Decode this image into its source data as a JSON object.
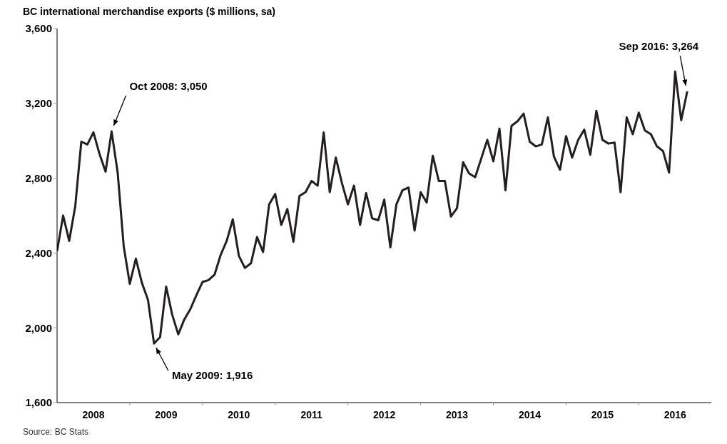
{
  "chart_data": {
    "type": "line",
    "title": "BC international merchandise exports ($ millions, sa)",
    "x": [
      "2008-01",
      "2008-02",
      "2008-03",
      "2008-04",
      "2008-05",
      "2008-06",
      "2008-07",
      "2008-08",
      "2008-09",
      "2008-10",
      "2008-11",
      "2008-12",
      "2009-01",
      "2009-02",
      "2009-03",
      "2009-04",
      "2009-05",
      "2009-06",
      "2009-07",
      "2009-08",
      "2009-09",
      "2009-10",
      "2009-11",
      "2009-12",
      "2010-01",
      "2010-02",
      "2010-03",
      "2010-04",
      "2010-05",
      "2010-06",
      "2010-07",
      "2010-08",
      "2010-09",
      "2010-10",
      "2010-11",
      "2010-12",
      "2011-01",
      "2011-02",
      "2011-03",
      "2011-04",
      "2011-05",
      "2011-06",
      "2011-07",
      "2011-08",
      "2011-09",
      "2011-10",
      "2011-11",
      "2011-12",
      "2012-01",
      "2012-02",
      "2012-03",
      "2012-04",
      "2012-05",
      "2012-06",
      "2012-07",
      "2012-08",
      "2012-09",
      "2012-10",
      "2012-11",
      "2012-12",
      "2013-01",
      "2013-02",
      "2013-03",
      "2013-04",
      "2013-05",
      "2013-06",
      "2013-07",
      "2013-08",
      "2013-09",
      "2013-10",
      "2013-11",
      "2013-12",
      "2014-01",
      "2014-02",
      "2014-03",
      "2014-04",
      "2014-05",
      "2014-06",
      "2014-07",
      "2014-08",
      "2014-09",
      "2014-10",
      "2014-11",
      "2014-12",
      "2015-01",
      "2015-02",
      "2015-03",
      "2015-04",
      "2015-05",
      "2015-06",
      "2015-07",
      "2015-08",
      "2015-09",
      "2015-10",
      "2015-11",
      "2015-12",
      "2016-01",
      "2016-02",
      "2016-03",
      "2016-04",
      "2016-05",
      "2016-06",
      "2016-07",
      "2016-08",
      "2016-09"
    ],
    "series": [
      {
        "color": "#231f20",
        "values": [
          2410,
          2600,
          2465,
          2650,
          2995,
          2980,
          3045,
          2930,
          2835,
          3050,
          2830,
          2435,
          2235,
          2370,
          2240,
          2150,
          1916,
          1950,
          2220,
          2070,
          1965,
          2045,
          2100,
          2175,
          2245,
          2255,
          2285,
          2390,
          2465,
          2580,
          2385,
          2320,
          2345,
          2485,
          2405,
          2660,
          2715,
          2550,
          2635,
          2460,
          2705,
          2725,
          2785,
          2760,
          3045,
          2725,
          2910,
          2775,
          2660,
          2760,
          2550,
          2720,
          2585,
          2575,
          2685,
          2430,
          2660,
          2735,
          2750,
          2520,
          2725,
          2670,
          2920,
          2785,
          2785,
          2595,
          2640,
          2885,
          2825,
          2805,
          2905,
          3005,
          2890,
          3065,
          2735,
          3080,
          3105,
          3145,
          2995,
          2970,
          2980,
          3125,
          2915,
          2845,
          3025,
          2910,
          3005,
          3060,
          2925,
          3160,
          3005,
          2985,
          2990,
          2725,
          3125,
          3035,
          3150,
          3055,
          3035,
          2970,
          2945,
          2830,
          3370,
          3110,
          3264
        ]
      }
    ],
    "xlim": [
      "2008-01-01",
      "2016-12-31"
    ],
    "xticks": [
      {
        "value": "2008-07-01",
        "label": "2008"
      },
      {
        "value": "2009-07-01",
        "label": "2009"
      },
      {
        "value": "2010-07-01",
        "label": "2010"
      },
      {
        "value": "2011-07-01",
        "label": "2011"
      },
      {
        "value": "2012-07-01",
        "label": "2012"
      },
      {
        "value": "2013-07-01",
        "label": "2013"
      },
      {
        "value": "2014-07-01",
        "label": "2014"
      },
      {
        "value": "2015-07-01",
        "label": "2015"
      },
      {
        "value": "2016-07-01",
        "label": "2016"
      },
      {
        "value": "2009-01-01",
        "label": null
      },
      {
        "value": "2010-01-01",
        "label": null
      },
      {
        "value": "2011-01-01",
        "label": null
      },
      {
        "value": "2012-01-01",
        "label": null
      },
      {
        "value": "2013-01-01",
        "label": null
      },
      {
        "value": "2014-01-01",
        "label": null
      },
      {
        "value": "2015-01-01",
        "label": null
      },
      {
        "value": "2016-01-01",
        "label": null
      }
    ],
    "ylim": [
      1600,
      3600
    ],
    "yticks": [
      {
        "value": 1600,
        "label": "1,600"
      },
      {
        "value": 2000,
        "label": "2,000"
      },
      {
        "value": 2400,
        "label": "2,400"
      },
      {
        "value": 2800,
        "label": "2,800"
      },
      {
        "value": 3200,
        "label": "3,200"
      },
      {
        "value": 3600,
        "label": "3,600"
      }
    ],
    "grid": false,
    "legend": false,
    "marker": "none",
    "line_style": "solid",
    "annotations": [
      {
        "text": "Oct 2008: 3,050",
        "x": "2008-10",
        "y": 3050
      },
      {
        "text": "May 2009: 1,916",
        "x": "2009-05",
        "y": 1916
      },
      {
        "text": "Sep 2016: 3,264",
        "x": "2016-09",
        "y": 3264
      },
      "Source: BC Stats"
    ]
  }
}
